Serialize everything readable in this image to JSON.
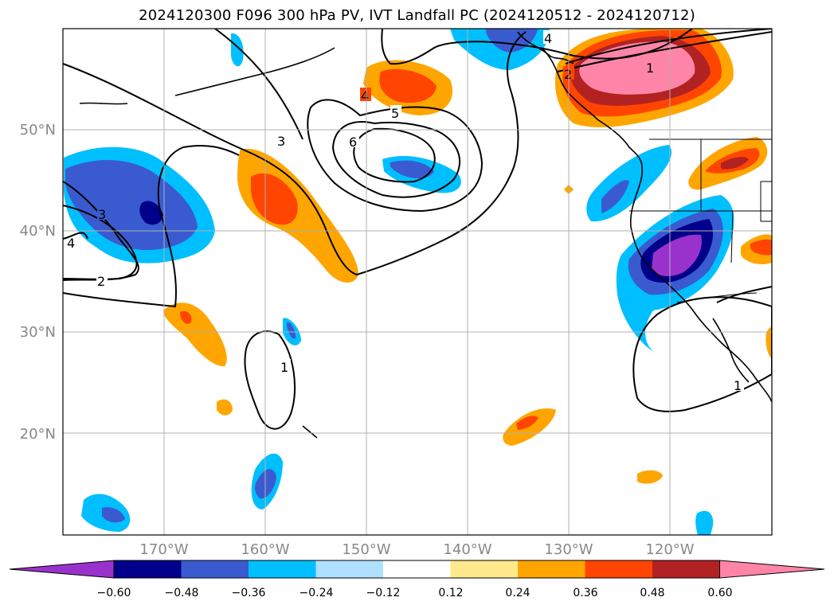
{
  "title": "2024120300 F096 300 hPa PV, IVT Landfall PC (2024120512 - 2024120712)",
  "map": {
    "lon_range": [
      -180,
      -110
    ],
    "lat_range": [
      10,
      60
    ],
    "lat_labels": [
      "20°N",
      "30°N",
      "40°N",
      "50°N"
    ],
    "lon_labels": [
      "170°W",
      "160°W",
      "150°W",
      "140°W",
      "130°W",
      "120°W"
    ],
    "grid": true
  },
  "colorbar": {
    "ticks": [
      "−0.60",
      "−0.48",
      "−0.36",
      "−0.24",
      "−0.12",
      "0.12",
      "0.24",
      "0.36",
      "0.48",
      "0.60"
    ],
    "colors": [
      "#9932cc",
      "#00008b",
      "#3a5bd0",
      "#00bfff",
      "#b0e0ff",
      "#ffffff",
      "#ffe98a",
      "#ffa500",
      "#ff4500",
      "#b22222",
      "#ff85a8"
    ]
  },
  "pv_contour_labels": [
    "1",
    "1",
    "1",
    "2",
    "2",
    "3",
    "3",
    "4",
    "4",
    "4",
    "5",
    "6"
  ]
}
